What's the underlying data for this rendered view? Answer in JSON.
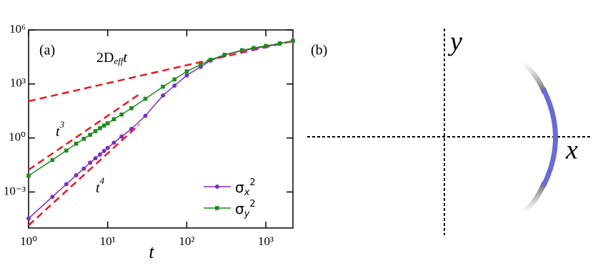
{
  "chart_data": {
    "type": "line",
    "panel_label": "(a)",
    "x_label": "t",
    "log_x": true,
    "log_y": true,
    "xlim": [
      1,
      2200
    ],
    "ylim": [
      1e-05,
      1000000
    ],
    "xticks": [
      {
        "value": 1,
        "label": "10⁰"
      },
      {
        "value": 10,
        "label": "10¹"
      },
      {
        "value": 100,
        "label": "10²"
      },
      {
        "value": 1000,
        "label": "10³"
      }
    ],
    "yticks": [
      {
        "value": 0.001,
        "label": "10⁻³"
      },
      {
        "value": 1,
        "label": "10⁰"
      },
      {
        "value": 1000,
        "label": "10³"
      },
      {
        "value": 1000000,
        "label": "10⁶"
      }
    ],
    "x": [
      1,
      2,
      3,
      4,
      5,
      6,
      7,
      8,
      9,
      10,
      12,
      15,
      20,
      30,
      50,
      70,
      100,
      150,
      200,
      300,
      500,
      700,
      1000,
      1500,
      2200
    ],
    "series": [
      {
        "name": "σ",
        "subscript": "x",
        "superscript": "2",
        "color": "#7b2fbe",
        "marker": "circle",
        "values": [
          3.4e-05,
          0.00054,
          0.0027,
          0.0085,
          0.02,
          0.042,
          0.075,
          0.12,
          0.19,
          0.28,
          0.55,
          1.2,
          3.2,
          17,
          230,
          800,
          3000,
          9000,
          20000,
          40000,
          70000,
          90000,
          120000,
          170000,
          250000
        ]
      },
      {
        "name": "σ",
        "subscript": "y",
        "superscript": "2",
        "color": "#1f8a1f",
        "marker": "square",
        "values": [
          0.008,
          0.06,
          0.2,
          0.48,
          0.9,
          1.5,
          2.4,
          3.5,
          4.9,
          6.5,
          11,
          20,
          45,
          150,
          700,
          1800,
          5000,
          12000,
          22000,
          42000,
          75000,
          100000,
          130000,
          180000,
          250000
        ]
      }
    ],
    "fits": [
      {
        "label": [
          "2D",
          "eff",
          "t"
        ],
        "color": "#e8191e",
        "x": [
          1,
          2200
        ],
        "values": [
          110,
          242000
        ]
      },
      {
        "label": [
          "t",
          "3"
        ],
        "color": "#e8191e",
        "x": [
          1,
          25
        ],
        "values": [
          0.017,
          265
        ]
      },
      {
        "label": [
          "t",
          "4"
        ],
        "color": "#e8191e",
        "x": [
          1,
          25
        ],
        "values": [
          1.4e-05,
          5.5
        ]
      }
    ],
    "legend": "lower right"
  },
  "panel_b": {
    "label": "(b)",
    "x_label": "x",
    "y_label": "y"
  }
}
